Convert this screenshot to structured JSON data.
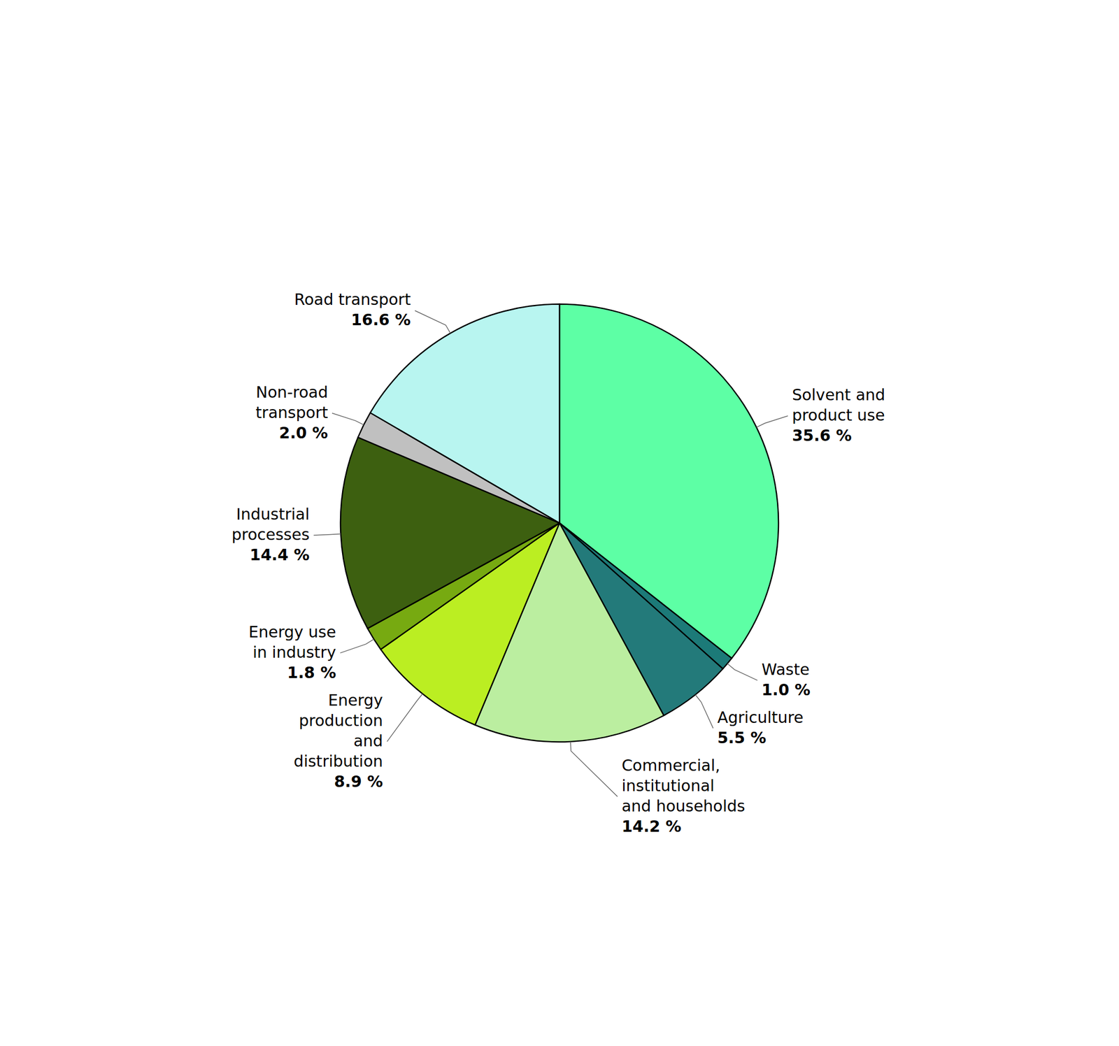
{
  "chart_data": {
    "type": "pie",
    "categories": [
      "Solvent and\nproduct use",
      "Waste",
      "Agriculture",
      "Commercial,\ninstitutional\nand households",
      "Energy\nproduction\nand\ndistribution",
      "Energy use\nin industry",
      "Industrial\nprocesses",
      "Non-road\ntransport",
      "Road transport"
    ],
    "values": [
      35.6,
      1.0,
      5.5,
      14.2,
      8.9,
      1.8,
      14.4,
      2.0,
      16.6
    ],
    "value_labels": [
      "35.6 %",
      "1.0 %",
      "5.5 %",
      "14.2 %",
      "8.9 %",
      "1.8 %",
      "14.4 %",
      "2.0 %",
      "16.6 %"
    ],
    "data_labels": true,
    "colors": [
      "#5DFFA5",
      "#1C7A78",
      "#237A7A",
      "#BBEEA0",
      "#BBEE22",
      "#77AA11",
      "#3D6010",
      "#C0C0C0",
      "#B8F5F0"
    ]
  }
}
